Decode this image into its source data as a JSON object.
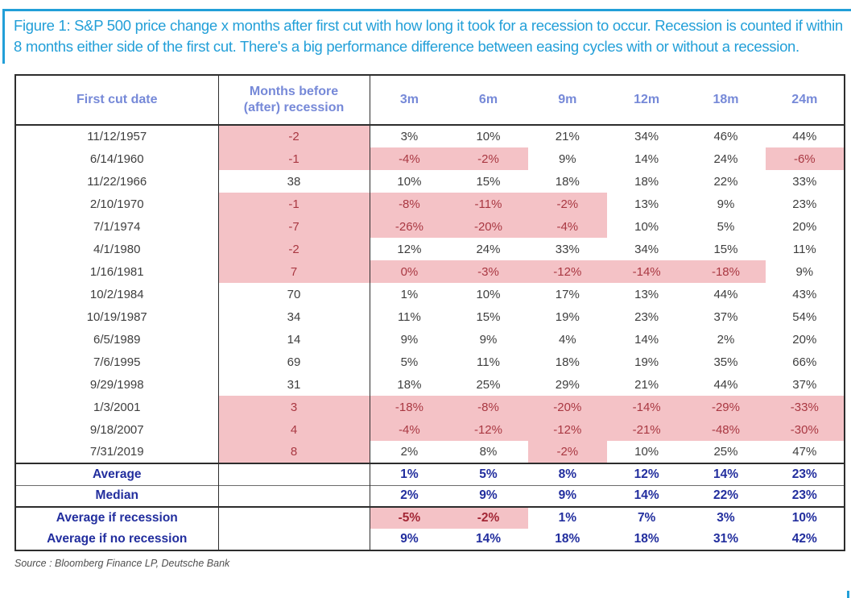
{
  "figure": {
    "title": "Figure 1: S&P 500 price change x months after first cut with how long it took for a recession to occur. Recession is counted if within 8 months either side of the first cut. There's a big performance difference between easing cycles with or without a recession.",
    "source": "Source : Bloomberg Finance LP, Deutsche Bank"
  },
  "colors": {
    "title_blue": "#229FD8",
    "header_periwinkle": "#7689D8",
    "recession_pink": "#F4C2C6",
    "negative_red": "#A93842",
    "summary_navy": "#222E9E",
    "body_text": "#3E3E3E",
    "border_dark": "#2D2D2D"
  },
  "chart_data": {
    "type": "table",
    "title": "S&P 500 price change x months after first cut vs time to recession",
    "col1_header": "First cut date",
    "col2_header_line1": "Months before",
    "col2_header_line2": "(after) recession",
    "period_headers": [
      "3m",
      "6m",
      "9m",
      "12m",
      "18m",
      "24m"
    ],
    "rows": [
      {
        "date": "11/12/1957",
        "months": "-2",
        "months_hl": true,
        "values": [
          "3%",
          "10%",
          "21%",
          "34%",
          "46%",
          "44%"
        ],
        "hl": [
          false,
          false,
          false,
          false,
          false,
          false
        ]
      },
      {
        "date": "6/14/1960",
        "months": "-1",
        "months_hl": true,
        "values": [
          "-4%",
          "-2%",
          "9%",
          "14%",
          "24%",
          "-6%"
        ],
        "hl": [
          true,
          true,
          false,
          false,
          false,
          true
        ]
      },
      {
        "date": "11/22/1966",
        "months": "38",
        "months_hl": false,
        "values": [
          "10%",
          "15%",
          "18%",
          "18%",
          "22%",
          "33%"
        ],
        "hl": [
          false,
          false,
          false,
          false,
          false,
          false
        ]
      },
      {
        "date": "2/10/1970",
        "months": "-1",
        "months_hl": true,
        "values": [
          "-8%",
          "-11%",
          "-2%",
          "13%",
          "9%",
          "23%"
        ],
        "hl": [
          true,
          true,
          true,
          false,
          false,
          false
        ]
      },
      {
        "date": "7/1/1974",
        "months": "-7",
        "months_hl": true,
        "values": [
          "-26%",
          "-20%",
          "-4%",
          "10%",
          "5%",
          "20%"
        ],
        "hl": [
          true,
          true,
          true,
          false,
          false,
          false
        ]
      },
      {
        "date": "4/1/1980",
        "months": "-2",
        "months_hl": true,
        "values": [
          "12%",
          "24%",
          "33%",
          "34%",
          "15%",
          "11%"
        ],
        "hl": [
          false,
          false,
          false,
          false,
          false,
          false
        ]
      },
      {
        "date": "1/16/1981",
        "months": "7",
        "months_hl": true,
        "values": [
          "0%",
          "-3%",
          "-12%",
          "-14%",
          "-18%",
          "9%"
        ],
        "hl": [
          true,
          true,
          true,
          true,
          true,
          false
        ]
      },
      {
        "date": "10/2/1984",
        "months": "70",
        "months_hl": false,
        "values": [
          "1%",
          "10%",
          "17%",
          "13%",
          "44%",
          "43%"
        ],
        "hl": [
          false,
          false,
          false,
          false,
          false,
          false
        ]
      },
      {
        "date": "10/19/1987",
        "months": "34",
        "months_hl": false,
        "values": [
          "11%",
          "15%",
          "19%",
          "23%",
          "37%",
          "54%"
        ],
        "hl": [
          false,
          false,
          false,
          false,
          false,
          false
        ]
      },
      {
        "date": "6/5/1989",
        "months": "14",
        "months_hl": false,
        "values": [
          "9%",
          "9%",
          "4%",
          "14%",
          "2%",
          "20%"
        ],
        "hl": [
          false,
          false,
          false,
          false,
          false,
          false
        ]
      },
      {
        "date": "7/6/1995",
        "months": "69",
        "months_hl": false,
        "values": [
          "5%",
          "11%",
          "18%",
          "19%",
          "35%",
          "66%"
        ],
        "hl": [
          false,
          false,
          false,
          false,
          false,
          false
        ]
      },
      {
        "date": "9/29/1998",
        "months": "31",
        "months_hl": false,
        "values": [
          "18%",
          "25%",
          "29%",
          "21%",
          "44%",
          "37%"
        ],
        "hl": [
          false,
          false,
          false,
          false,
          false,
          false
        ]
      },
      {
        "date": "1/3/2001",
        "months": "3",
        "months_hl": true,
        "values": [
          "-18%",
          "-8%",
          "-20%",
          "-14%",
          "-29%",
          "-33%"
        ],
        "hl": [
          true,
          true,
          true,
          true,
          true,
          true
        ]
      },
      {
        "date": "9/18/2007",
        "months": "4",
        "months_hl": true,
        "values": [
          "-4%",
          "-12%",
          "-12%",
          "-21%",
          "-48%",
          "-30%"
        ],
        "hl": [
          true,
          true,
          true,
          true,
          true,
          true
        ]
      },
      {
        "date": "7/31/2019",
        "months": "8",
        "months_hl": true,
        "values": [
          "2%",
          "8%",
          "-2%",
          "10%",
          "25%",
          "47%"
        ],
        "hl": [
          false,
          false,
          true,
          false,
          false,
          false
        ]
      }
    ],
    "summary_rows": [
      {
        "label": "Average",
        "values": [
          "1%",
          "5%",
          "8%",
          "12%",
          "14%",
          "23%"
        ],
        "hl": [
          false,
          false,
          false,
          false,
          false,
          false
        ],
        "sep": "first-sum"
      },
      {
        "label": "Median",
        "values": [
          "2%",
          "9%",
          "9%",
          "14%",
          "22%",
          "23%"
        ],
        "hl": [
          false,
          false,
          false,
          false,
          false,
          false
        ],
        "sep": "sep-thin"
      },
      {
        "label": "Average if recession",
        "values": [
          "-5%",
          "-2%",
          "1%",
          "7%",
          "3%",
          "10%"
        ],
        "hl": [
          true,
          true,
          false,
          false,
          false,
          false
        ],
        "sep": "sep-med"
      },
      {
        "label": "Average if no recession",
        "values": [
          "9%",
          "14%",
          "18%",
          "18%",
          "31%",
          "42%"
        ],
        "hl": [
          false,
          false,
          false,
          false,
          false,
          false
        ],
        "sep": "none"
      }
    ]
  }
}
